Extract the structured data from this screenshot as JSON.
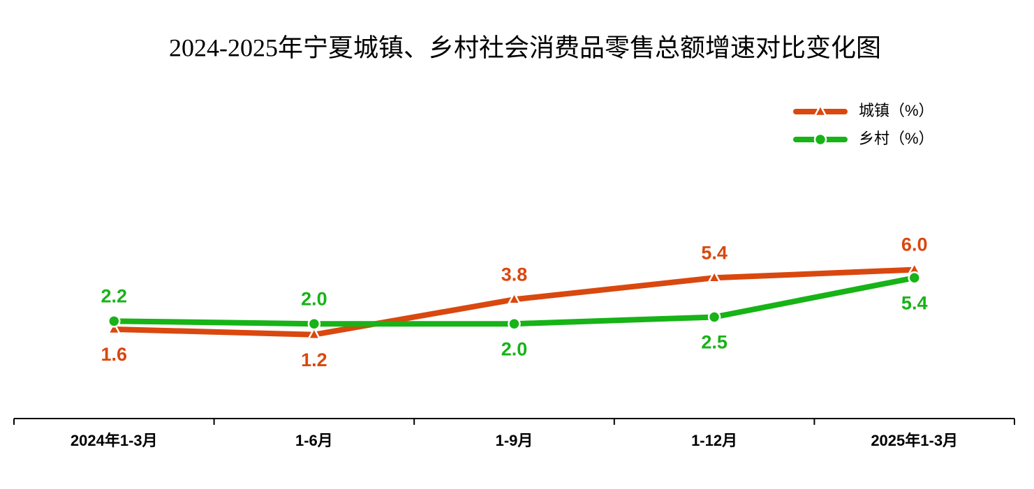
{
  "chart_data": {
    "type": "line",
    "title": "2024-2025年宁夏城镇、乡村社会消费品零售总额增速对比变化图",
    "categories": [
      "2024年1-3月",
      "1-6月",
      "1-9月",
      "1-12月",
      "2025年1-3月"
    ],
    "ylim": [
      -5,
      20
    ],
    "legend": "upper right",
    "series": [
      {
        "name": "城镇（%）",
        "color": "#d9480f",
        "marker": "triangle",
        "values": [
          1.6,
          1.2,
          3.8,
          5.4,
          6.0
        ],
        "value_labels": [
          "1.6",
          "1.2",
          "3.8",
          "5.4",
          "6.0"
        ]
      },
      {
        "name": "乡村（%）",
        "color": "#17b317",
        "marker": "circle",
        "values": [
          2.2,
          2.0,
          2.0,
          2.5,
          5.4
        ],
        "value_labels": [
          "2.2",
          "2.0",
          "2.0",
          "2.5",
          "5.4"
        ]
      }
    ]
  }
}
